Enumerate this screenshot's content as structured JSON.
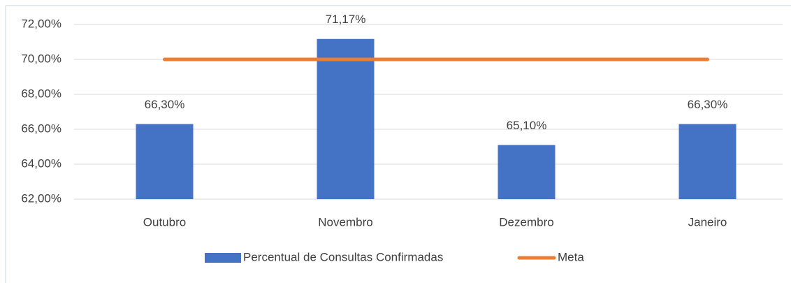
{
  "chart_data": {
    "type": "bar",
    "categories": [
      "Outubro",
      "Novembro",
      "Dezembro",
      "Janeiro"
    ],
    "series": [
      {
        "name": "Percentual de Consultas Confirmadas",
        "type": "bar",
        "color": "#4472c4",
        "values": [
          66.3,
          71.17,
          65.1,
          66.3
        ],
        "value_labels": [
          "66,30%",
          "71,17%",
          "65,10%",
          "66,30%"
        ]
      },
      {
        "name": "Meta",
        "type": "line",
        "color": "#ed7d31",
        "values": [
          70,
          70,
          70,
          70
        ]
      }
    ],
    "ylim": [
      62,
      72
    ],
    "yticks": [
      {
        "value": 62,
        "label": "62,00%"
      },
      {
        "value": 64,
        "label": "64,00%"
      },
      {
        "value": 66,
        "label": "66,00%"
      },
      {
        "value": 68,
        "label": "68,00%"
      },
      {
        "value": 70,
        "label": "70,00%"
      },
      {
        "value": 72,
        "label": "72,00%"
      }
    ],
    "grid": true,
    "legend": "bottom"
  }
}
